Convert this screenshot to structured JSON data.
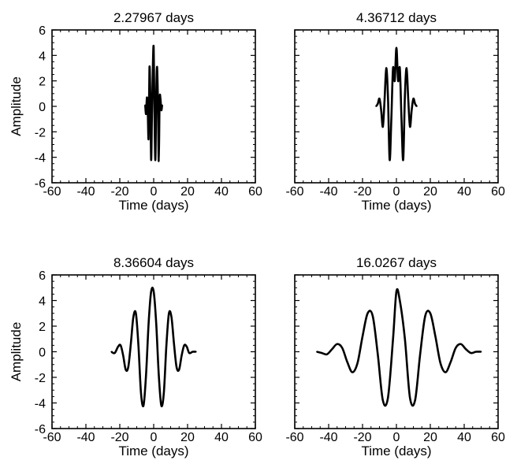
{
  "chart_data": [
    {
      "type": "line",
      "title": "2.27967 days",
      "xlabel": "Time (days)",
      "ylabel": "Amplitude",
      "xlim": [
        -60,
        60
      ],
      "ylim": [
        -6,
        6
      ],
      "xticks": [
        "-60",
        "-40",
        "-20",
        "0",
        "20",
        "40",
        "60"
      ],
      "yticks": [
        "6",
        "4",
        "2",
        "0",
        "-2",
        "-4",
        "-6"
      ],
      "series": [
        {
          "x": [
            -5.0,
            -4.5,
            -4.0,
            -3.5,
            -3.0,
            -2.5,
            -2.0,
            -1.5,
            -1.0,
            -0.5,
            0.0,
            0.5,
            1.0,
            1.5,
            2.0,
            2.5,
            3.0,
            3.5,
            4.0,
            4.5,
            5.0
          ],
          "y": [
            0.1,
            -0.6,
            0.7,
            -0.4,
            -2.5,
            3.0,
            1.0,
            -4.2,
            -0.5,
            3.0,
            4.6,
            -0.8,
            -4.2,
            0.8,
            3.1,
            0.4,
            -4.3,
            0.5,
            0.6,
            -0.3,
            0.1
          ]
        }
      ]
    },
    {
      "type": "line",
      "title": "4.36712 days",
      "xlabel": "Time (days)",
      "ylabel": "",
      "xlim": [
        -60,
        60
      ],
      "ylim": [
        -6,
        6
      ],
      "xticks": [
        "-60",
        "-40",
        "-20",
        "0",
        "20",
        "40",
        "60"
      ],
      "yticks": [],
      "series": [
        {
          "x": [
            -12.0,
            -11.0,
            -10.0,
            -9.0,
            -8.0,
            -7.0,
            -6.0,
            -5.0,
            -4.0,
            -3.0,
            -2.0,
            -1.0,
            0.0,
            1.0,
            2.0,
            3.0,
            4.0,
            5.0,
            6.0,
            7.0,
            8.0,
            9.0,
            10.0,
            11.0,
            12.0
          ],
          "y": [
            0.0,
            0.2,
            0.6,
            -0.3,
            -1.6,
            0.5,
            3.0,
            0.8,
            -4.2,
            -1.0,
            3.0,
            2.0,
            4.6,
            2.0,
            3.0,
            -1.0,
            -4.2,
            0.8,
            3.0,
            0.5,
            -1.6,
            -0.3,
            0.6,
            0.2,
            0.0
          ]
        }
      ]
    },
    {
      "type": "line",
      "title": "8.36604 days",
      "xlabel": "Time (days)",
      "ylabel": "Amplitude",
      "xlim": [
        -60,
        60
      ],
      "ylim": [
        -6,
        6
      ],
      "xticks": [
        "-60",
        "-40",
        "-20",
        "0",
        "20",
        "40",
        "60"
      ],
      "yticks": [
        "6",
        "4",
        "2",
        "0",
        "-2",
        "-4",
        "-6"
      ],
      "series": [
        {
          "x": [
            -25,
            -23,
            -21,
            -19.5,
            -18,
            -16.5,
            -15,
            -13.5,
            -12,
            -10.5,
            -9,
            -7.5,
            -6,
            -4.5,
            -3,
            -1.5,
            0,
            1.5,
            3,
            4.5,
            6,
            7.5,
            9,
            10.5,
            12,
            13.5,
            15,
            16.5,
            18,
            19.5,
            21,
            23,
            25
          ],
          "y": [
            0.0,
            -0.1,
            0.4,
            0.5,
            -0.3,
            -1.4,
            -1.2,
            0.6,
            2.7,
            3.0,
            0.5,
            -3.2,
            -4.2,
            -1.8,
            2.2,
            4.7,
            4.7,
            2.2,
            -1.8,
            -4.2,
            -3.2,
            0.5,
            3.0,
            2.7,
            0.6,
            -1.2,
            -1.4,
            -0.3,
            0.5,
            0.4,
            -0.1,
            0.0,
            0.0
          ]
        }
      ]
    },
    {
      "type": "line",
      "title": "16.0267 days",
      "xlabel": "Time (days)",
      "ylabel": "",
      "xlim": [
        -60,
        60
      ],
      "ylim": [
        -6,
        6
      ],
      "xticks": [
        "-60",
        "-40",
        "-20",
        "0",
        "20",
        "40",
        "60"
      ],
      "yticks": [],
      "series": [
        {
          "x": [
            -47,
            -44,
            -41,
            -38,
            -35,
            -32,
            -29,
            -26,
            -23,
            -20,
            -17,
            -14,
            -11,
            -8,
            -5,
            -2,
            0,
            2,
            5,
            8,
            11,
            14,
            17,
            20,
            23,
            26,
            29,
            32,
            35,
            38,
            41,
            44,
            47,
            50
          ],
          "y": [
            0.0,
            -0.1,
            -0.2,
            0.2,
            0.6,
            0.3,
            -0.8,
            -1.6,
            -0.9,
            1.2,
            3.0,
            2.8,
            -0.2,
            -3.8,
            -3.6,
            1.0,
            4.7,
            4.0,
            1.0,
            -3.6,
            -3.8,
            -0.2,
            2.8,
            3.0,
            1.2,
            -0.9,
            -1.6,
            -0.8,
            0.3,
            0.6,
            0.2,
            -0.1,
            0.0,
            0.0
          ]
        }
      ]
    }
  ]
}
